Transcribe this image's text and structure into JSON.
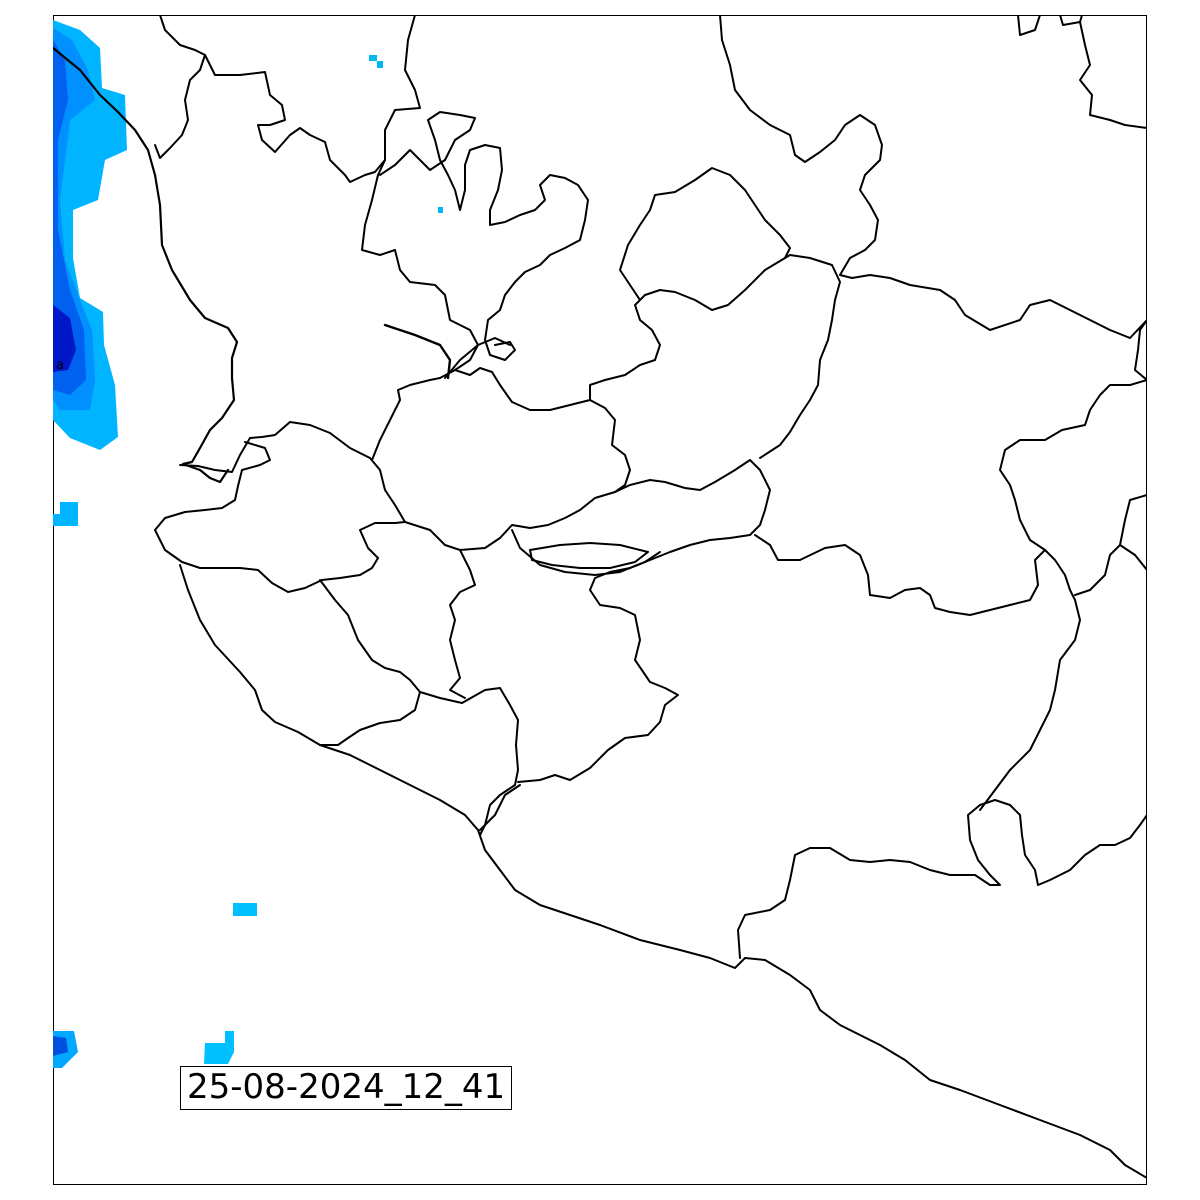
{
  "timestamp": "25-08-2024_12_41",
  "edge_label": "a",
  "colors": {
    "border": "#000000",
    "precip_light": "#00c0ff",
    "precip_medium": "#00a0ff",
    "precip_strong": "#0060ff",
    "precip_heavy": "#0020d0"
  }
}
